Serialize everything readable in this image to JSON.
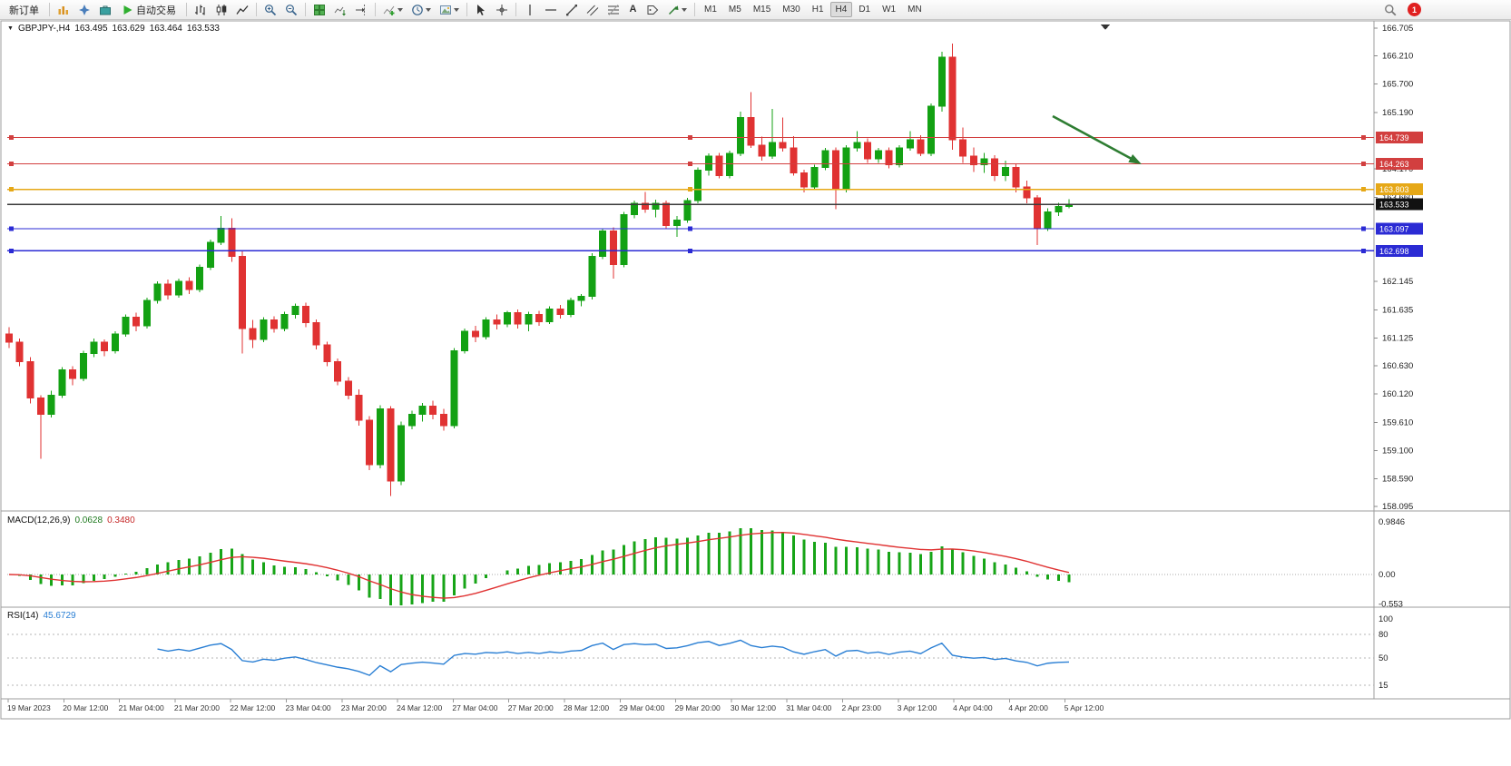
{
  "toolbar": {
    "new_order_label": "新订单",
    "auto_trading_label": "自动交易",
    "timeframes": [
      "M1",
      "M5",
      "M15",
      "M30",
      "H1",
      "H4",
      "D1",
      "W1",
      "MN"
    ],
    "active_timeframe": "H4",
    "notification_count": "1",
    "text_tool_glyph": "A"
  },
  "chart": {
    "menu_glyph": "▼",
    "title": {
      "symbol_tf": "GBPJPY-,H4",
      "open": "163.495",
      "high": "163.629",
      "low": "163.464",
      "close": "163.533"
    },
    "price_axis_labels": [
      "166.705",
      "166.210",
      "165.700",
      "165.190",
      "164.170",
      "163.660",
      "162.145",
      "161.635",
      "161.125",
      "160.630",
      "160.120",
      "159.610",
      "159.100",
      "158.590",
      "158.095"
    ],
    "hlines": [
      {
        "price": 164.739,
        "label": "164.739",
        "color": "#d23f3f",
        "name": "resistance-line-1",
        "handles": true
      },
      {
        "price": 164.263,
        "label": "164.263",
        "color": "#d23f3f",
        "name": "resistance-line-2",
        "handles": true
      },
      {
        "price": 163.803,
        "label": "163.803",
        "color": "#e6a817",
        "name": "pivot-line",
        "handles": true
      },
      {
        "price": 163.533,
        "label": "163.533",
        "color": "#3a3a3a",
        "badge": "#111111",
        "name": "bid-price-line",
        "handles": false
      },
      {
        "price": 163.097,
        "label": "163.097",
        "color": "#2b2bd4",
        "name": "support-line-1",
        "handles": true
      },
      {
        "price": 162.698,
        "label": "162.698",
        "color": "#2b2bd4",
        "name": "support-line-2",
        "handles": true
      }
    ],
    "time_axis_labels": [
      "19 Mar 2023",
      "20 Mar 12:00",
      "21 Mar 04:00",
      "21 Mar 20:00",
      "22 Mar 12:00",
      "23 Mar 04:00",
      "23 Mar 20:00",
      "24 Mar 12:00",
      "27 Mar 04:00",
      "27 Mar 20:00",
      "28 Mar 12:00",
      "29 Mar 04:00",
      "29 Mar 20:00",
      "30 Mar 12:00",
      "31 Mar 04:00",
      "2 Apr 23:00",
      "3 Apr 12:00",
      "4 Apr 04:00",
      "4 Apr 20:00",
      "5 Apr 12:00"
    ],
    "colors": {
      "up": "#13a113",
      "down": "#e03232",
      "macd_hist": "#17a417",
      "signal": "#e03232",
      "rsi": "#2a7fd4",
      "arrow": "#2e7d32"
    }
  },
  "macd_panel": {
    "name": "MACD(12,26,9)",
    "main": "0.0628",
    "signal": "0.3480"
  },
  "rsi_panel": {
    "name": "RSI(14)",
    "value": "45.6729"
  },
  "chart_data": {
    "type": "candlestick",
    "symbol": "GBPJPY",
    "timeframe": "H4",
    "current_ohlc": {
      "open": 163.495,
      "high": 163.629,
      "low": 163.464,
      "close": 163.533
    },
    "price_axis_range": [
      158.095,
      166.705
    ],
    "candles_ohlc": [
      [
        161.2,
        161.32,
        160.95,
        161.05
      ],
      [
        161.05,
        161.12,
        160.62,
        160.7
      ],
      [
        160.7,
        160.78,
        159.95,
        160.05
      ],
      [
        160.05,
        160.1,
        158.95,
        159.75
      ],
      [
        159.75,
        160.18,
        159.7,
        160.1
      ],
      [
        160.1,
        160.6,
        160.05,
        160.55
      ],
      [
        160.55,
        160.62,
        160.28,
        160.4
      ],
      [
        160.4,
        160.9,
        160.35,
        160.85
      ],
      [
        160.85,
        161.12,
        160.78,
        161.05
      ],
      [
        161.05,
        161.1,
        160.8,
        160.9
      ],
      [
        160.9,
        161.25,
        160.85,
        161.2
      ],
      [
        161.2,
        161.55,
        161.15,
        161.5
      ],
      [
        161.5,
        161.58,
        161.25,
        161.35
      ],
      [
        161.35,
        161.85,
        161.3,
        161.8
      ],
      [
        161.8,
        162.15,
        161.75,
        162.1
      ],
      [
        162.1,
        162.18,
        161.82,
        161.9
      ],
      [
        161.9,
        162.2,
        161.85,
        162.15
      ],
      [
        162.15,
        162.22,
        161.92,
        162.0
      ],
      [
        162.0,
        162.45,
        161.95,
        162.4
      ],
      [
        162.4,
        162.9,
        162.35,
        162.85
      ],
      [
        162.85,
        163.32,
        162.8,
        163.1
      ],
      [
        163.1,
        163.28,
        162.5,
        162.6
      ],
      [
        162.6,
        162.7,
        160.85,
        161.3
      ],
      [
        161.3,
        161.45,
        160.95,
        161.1
      ],
      [
        161.1,
        161.5,
        161.05,
        161.45
      ],
      [
        161.45,
        161.52,
        161.22,
        161.3
      ],
      [
        161.3,
        161.6,
        161.25,
        161.55
      ],
      [
        161.55,
        161.75,
        161.48,
        161.7
      ],
      [
        161.7,
        161.76,
        161.32,
        161.4
      ],
      [
        161.4,
        161.46,
        160.92,
        161.0
      ],
      [
        161.0,
        161.06,
        160.62,
        160.7
      ],
      [
        160.7,
        160.76,
        160.28,
        160.35
      ],
      [
        160.35,
        160.42,
        160.02,
        160.1
      ],
      [
        160.1,
        160.2,
        159.55,
        159.65
      ],
      [
        159.65,
        159.72,
        158.75,
        158.85
      ],
      [
        158.85,
        159.92,
        158.78,
        159.85
      ],
      [
        159.85,
        159.9,
        158.28,
        158.55
      ],
      [
        158.55,
        159.62,
        158.48,
        159.55
      ],
      [
        159.55,
        159.82,
        159.48,
        159.75
      ],
      [
        159.75,
        159.96,
        159.62,
        159.9
      ],
      [
        159.9,
        160.0,
        159.66,
        159.75
      ],
      [
        159.75,
        159.85,
        159.46,
        159.55
      ],
      [
        159.55,
        160.95,
        159.5,
        160.9
      ],
      [
        160.9,
        161.3,
        160.85,
        161.25
      ],
      [
        161.25,
        161.35,
        161.05,
        161.15
      ],
      [
        161.15,
        161.5,
        161.1,
        161.45
      ],
      [
        161.45,
        161.55,
        161.28,
        161.38
      ],
      [
        161.38,
        161.62,
        161.32,
        161.58
      ],
      [
        161.58,
        161.64,
        161.3,
        161.38
      ],
      [
        161.38,
        161.6,
        161.25,
        161.55
      ],
      [
        161.55,
        161.62,
        161.35,
        161.42
      ],
      [
        161.42,
        161.7,
        161.38,
        161.65
      ],
      [
        161.65,
        161.72,
        161.48,
        161.55
      ],
      [
        161.55,
        161.85,
        161.5,
        161.8
      ],
      [
        161.8,
        161.92,
        161.7,
        161.88
      ],
      [
        161.88,
        162.65,
        161.82,
        162.6
      ],
      [
        162.6,
        163.1,
        162.55,
        163.05
      ],
      [
        163.05,
        163.12,
        162.2,
        162.45
      ],
      [
        162.45,
        163.4,
        162.4,
        163.35
      ],
      [
        163.35,
        163.6,
        163.28,
        163.55
      ],
      [
        163.55,
        163.76,
        163.38,
        163.45
      ],
      [
        163.45,
        163.62,
        163.3,
        163.55
      ],
      [
        163.55,
        163.6,
        163.1,
        163.15
      ],
      [
        163.15,
        163.32,
        162.95,
        163.25
      ],
      [
        163.25,
        163.65,
        163.2,
        163.6
      ],
      [
        163.6,
        164.2,
        163.55,
        164.15
      ],
      [
        164.15,
        164.45,
        164.05,
        164.4
      ],
      [
        164.4,
        164.46,
        164.0,
        164.05
      ],
      [
        164.05,
        164.5,
        164.0,
        164.45
      ],
      [
        164.45,
        165.2,
        164.4,
        165.1
      ],
      [
        165.1,
        165.55,
        164.55,
        164.6
      ],
      [
        164.6,
        164.75,
        164.32,
        164.4
      ],
      [
        164.4,
        165.25,
        164.35,
        164.65
      ],
      [
        164.65,
        165.1,
        164.48,
        164.55
      ],
      [
        164.55,
        164.76,
        164.05,
        164.1
      ],
      [
        164.1,
        164.16,
        163.75,
        163.85
      ],
      [
        163.85,
        164.25,
        163.8,
        164.2
      ],
      [
        164.2,
        164.55,
        164.15,
        164.5
      ],
      [
        164.5,
        164.56,
        163.45,
        163.8
      ],
      [
        163.8,
        164.6,
        163.75,
        164.55
      ],
      [
        164.55,
        164.85,
        164.48,
        164.65
      ],
      [
        164.65,
        164.72,
        164.28,
        164.35
      ],
      [
        164.35,
        164.55,
        164.28,
        164.5
      ],
      [
        164.5,
        164.56,
        164.18,
        164.25
      ],
      [
        164.25,
        164.6,
        164.2,
        164.55
      ],
      [
        164.55,
        164.85,
        164.5,
        164.7
      ],
      [
        164.7,
        164.78,
        164.4,
        164.45
      ],
      [
        164.45,
        165.35,
        164.4,
        165.3
      ],
      [
        165.3,
        166.28,
        165.2,
        166.18
      ],
      [
        166.18,
        166.43,
        164.52,
        164.7
      ],
      [
        164.7,
        164.92,
        164.28,
        164.4
      ],
      [
        164.4,
        164.56,
        164.12,
        164.25
      ],
      [
        164.25,
        164.46,
        164.1,
        164.35
      ],
      [
        164.35,
        164.42,
        163.95,
        164.05
      ],
      [
        164.05,
        164.32,
        163.95,
        164.2
      ],
      [
        164.2,
        164.26,
        163.75,
        163.85
      ],
      [
        163.85,
        163.96,
        163.55,
        163.65
      ],
      [
        163.65,
        163.7,
        162.8,
        163.1
      ],
      [
        163.1,
        163.46,
        163.05,
        163.4
      ],
      [
        163.4,
        163.56,
        163.32,
        163.495
      ],
      [
        163.495,
        163.629,
        163.464,
        163.533
      ]
    ],
    "indicators": [
      {
        "type": "MACD",
        "params": "12,26,9",
        "current_main": "0.0628",
        "current_signal": "0.3480",
        "axis_labels": [
          "0.9846",
          "0.00",
          "-0.553"
        ]
      },
      {
        "type": "RSI",
        "params": "14",
        "current": "45.6729",
        "axis_labels": [
          "100",
          "80",
          "50",
          "15"
        ],
        "levels": [
          80,
          50,
          15
        ]
      }
    ]
  }
}
